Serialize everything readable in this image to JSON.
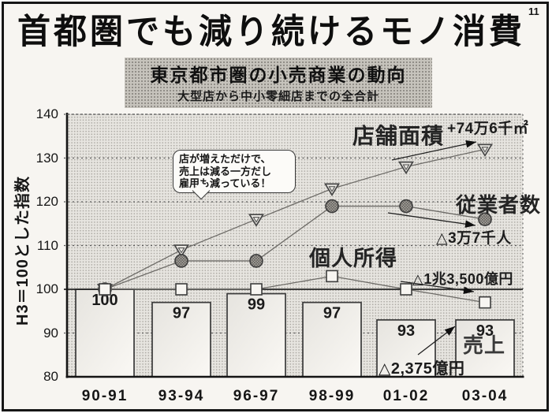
{
  "page_number": "11",
  "title": "首都圏でも減り続けるモノ消費",
  "subtitle": {
    "line1": "東京都市圏の小売商業の動向",
    "line2": "大型店から中小零細店までの全合計"
  },
  "callout": {
    "line1": "店が増えただけで、",
    "line2": "売上は減る一方だし",
    "line3": "雇用も減っている！"
  },
  "annotations": {
    "floor_area_change": "+74万6千㎡",
    "employees_change": "△3万7千人",
    "income_change": "△1兆3,500億円",
    "sales_change": "△2,375億円"
  },
  "palette": {
    "ink": "#161616",
    "paper": "#f7f5f1",
    "subbg": "#c6c3bc",
    "subdot": "#8d8a84",
    "plotbg": "#e7e5e0",
    "plotdot": "#adaaa4",
    "line": "#6e6c68"
  },
  "chart_data": {
    "type": "bar+line combo",
    "title": "東京都市圏の小売商業の動向",
    "ylabel": "H3＝100とした指数",
    "ylim": [
      80,
      140
    ],
    "yticks": [
      80,
      90,
      100,
      110,
      120,
      130,
      140
    ],
    "grid": true,
    "reference_line": 100,
    "categories": [
      "90-91",
      "93-94",
      "96-97",
      "98-99",
      "01-02",
      "03-04"
    ],
    "bar_series": {
      "name": "売上",
      "values": [
        100,
        97,
        99,
        97,
        93,
        93
      ],
      "change_note": "△2,375億円"
    },
    "line_series": [
      {
        "name": "店舗面積",
        "marker": "triangle-down",
        "values": [
          100,
          109,
          116,
          123,
          128,
          132
        ],
        "change_note": "+74万6千㎡"
      },
      {
        "name": "従業者数",
        "marker": "circle",
        "values": [
          100,
          106.5,
          106.5,
          119,
          119,
          116
        ],
        "change_note": "△3万7千人"
      },
      {
        "name": "個人所得",
        "marker": "square",
        "values": [
          100,
          100,
          100,
          103,
          100,
          97
        ],
        "change_note": "△1兆3,500億円"
      }
    ]
  }
}
